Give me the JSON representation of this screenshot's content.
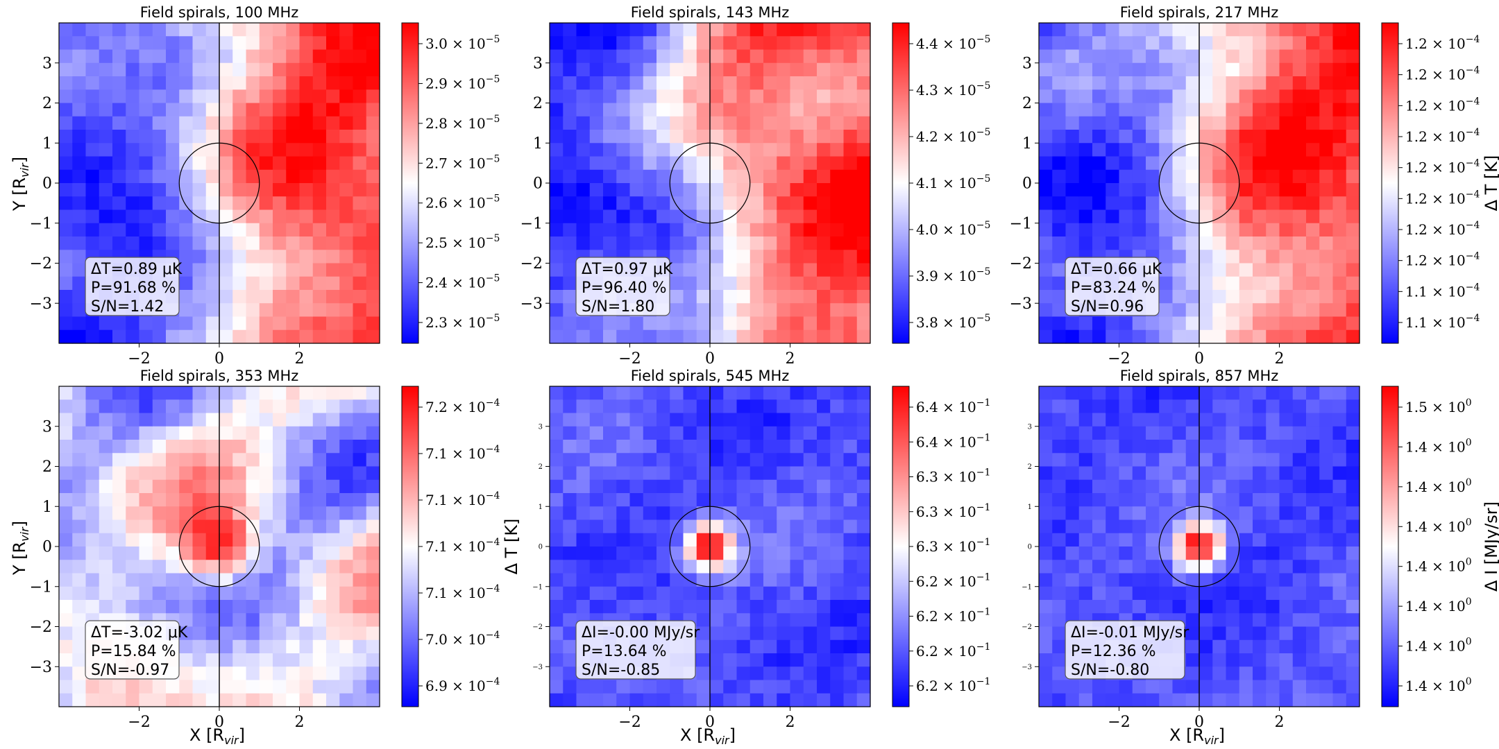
{
  "figure": {
    "x_axis_label": "X [R",
    "x_axis_label_sub": "vir",
    "x_axis_label_end": "]",
    "y_axis_label": "Y [R",
    "y_axis_label_sub": "vir",
    "y_axis_label_end": "]",
    "colors": {
      "map_low": "#0000ff",
      "map_mid": "#ffffff",
      "map_high": "#ff0000",
      "frame": "#000000"
    }
  },
  "chart_data": [
    {
      "type": "heatmap",
      "row": 0,
      "col": 0,
      "title": "Field spirals, 100 MHz",
      "xlim": [
        -4,
        4
      ],
      "ylim": [
        -4,
        4
      ],
      "xticks": [
        "−2",
        "0",
        "2"
      ],
      "xtick_values": [
        -2,
        0,
        2
      ],
      "yticks": [
        "3",
        "2",
        "1",
        "0",
        "−1",
        "−2",
        "−3"
      ],
      "ytick_values": [
        3,
        2,
        1,
        0,
        -1,
        -2,
        -3
      ],
      "circle_radius": 1,
      "pattern": "left-blue-right-red",
      "stats": [
        "ΔT=0.89 μK",
        "P=91.68 %",
        "S/N=1.42"
      ],
      "colorbar": {
        "label": "",
        "ticks": [
          "3.0 × 10",
          "2.9 × 10",
          "2.8 × 10",
          "2.7 × 10",
          "2.6 × 10",
          "2.5 × 10",
          "2.4 × 10",
          "2.3 × 10"
        ],
        "exponent": "−5"
      }
    },
    {
      "type": "heatmap",
      "row": 0,
      "col": 1,
      "title": "Field spirals, 143 MHz",
      "xlim": [
        -4,
        4
      ],
      "ylim": [
        -4,
        4
      ],
      "xticks": [
        "−2",
        "0",
        "2"
      ],
      "xtick_values": [
        -2,
        0,
        2
      ],
      "yticks": [
        "3",
        "2",
        "1",
        "0",
        "−1",
        "−2",
        "−3"
      ],
      "ytick_values": [
        3,
        2,
        1,
        0,
        -1,
        -2,
        -3
      ],
      "circle_radius": 1,
      "pattern": "left-blue-right-red",
      "stats": [
        "ΔT=0.97 μK",
        "P=96.40 %",
        "S/N=1.80"
      ],
      "colorbar": {
        "label": "",
        "ticks": [
          "4.4 × 10",
          "4.3 × 10",
          "4.2 × 10",
          "4.1 × 10",
          "4.0 × 10",
          "3.9 × 10",
          "3.8 × 10"
        ],
        "exponent": "−5"
      }
    },
    {
      "type": "heatmap",
      "row": 0,
      "col": 2,
      "title": "Field spirals, 217 MHz",
      "xlim": [
        -4,
        4
      ],
      "ylim": [
        -4,
        4
      ],
      "xticks": [
        "−2",
        "0",
        "2"
      ],
      "xtick_values": [
        -2,
        0,
        2
      ],
      "yticks": [
        "3",
        "2",
        "1",
        "0",
        "−1",
        "−2",
        "−3"
      ],
      "ytick_values": [
        3,
        2,
        1,
        0,
        -1,
        -2,
        -3
      ],
      "circle_radius": 1,
      "pattern": "left-blue-right-red",
      "stats": [
        "ΔT=0.66 μK",
        "P=83.24 %",
        "S/N=0.96"
      ],
      "colorbar": {
        "label": "Δ T [K]",
        "ticks": [
          "1.2 × 10",
          "1.2 × 10",
          "1.2 × 10",
          "1.2 × 10",
          "1.2 × 10",
          "1.2 × 10",
          "1.2 × 10",
          "1.2 × 10",
          "1.1 × 10",
          "1.1 × 10"
        ],
        "exponent": "−4"
      }
    },
    {
      "type": "heatmap",
      "row": 1,
      "col": 0,
      "title": "Field spirals, 353 MHz",
      "xlim": [
        -4,
        4
      ],
      "ylim": [
        -4,
        4
      ],
      "xticks": [
        "−2",
        "0",
        "2"
      ],
      "xtick_values": [
        -2,
        0,
        2
      ],
      "yticks": [
        "3",
        "2",
        "1",
        "0",
        "−1",
        "−2",
        "−3"
      ],
      "ytick_values": [
        3,
        2,
        1,
        0,
        -1,
        -2,
        -3
      ],
      "circle_radius": 1,
      "pattern": "noisy-central-red",
      "stats": [
        "ΔT=-3.02 μK",
        "P=15.84 %",
        "S/N=-0.97"
      ],
      "colorbar": {
        "label": "Δ T [K]",
        "ticks": [
          "7.2 × 10",
          "7.1 × 10",
          "7.1 × 10",
          "7.1 × 10",
          "7.1 × 10",
          "7.0 × 10",
          "6.9 × 10"
        ],
        "exponent": "−4"
      }
    },
    {
      "type": "heatmap",
      "row": 1,
      "col": 1,
      "title": "Field spirals, 545 MHz",
      "xlim": [
        -4,
        4
      ],
      "ylim": [
        -4,
        4
      ],
      "xticks": [
        "−2",
        "0",
        "2"
      ],
      "xtick_values": [
        -2,
        0,
        2
      ],
      "yticks": [
        "3",
        "2",
        "1",
        "0",
        "−1",
        "−2",
        "−3"
      ],
      "ytick_values": [
        3,
        2,
        1,
        0,
        -1,
        -2,
        -3
      ],
      "circle_radius": 1,
      "pattern": "blue-central-source",
      "stats": [
        "ΔI=-0.00 MJy/sr",
        "P=13.64 %",
        "S/N=-0.85"
      ],
      "colorbar": {
        "label": "",
        "ticks": [
          "6.4 × 10",
          "6.4 × 10",
          "6.3 × 10",
          "6.3 × 10",
          "6.3 × 10",
          "6.2 × 10",
          "6.2 × 10",
          "6.2 × 10",
          "6.2 × 10"
        ],
        "exponent": "−1"
      }
    },
    {
      "type": "heatmap",
      "row": 1,
      "col": 2,
      "title": "Field spirals, 857 MHz",
      "xlim": [
        -4,
        4
      ],
      "ylim": [
        -4,
        4
      ],
      "xticks": [
        "−2",
        "0",
        "2"
      ],
      "xtick_values": [
        -2,
        0,
        2
      ],
      "yticks": [
        "3",
        "2",
        "1",
        "0",
        "−1",
        "−2",
        "−3"
      ],
      "ytick_values": [
        3,
        2,
        1,
        0,
        -1,
        -2,
        -3
      ],
      "circle_radius": 1,
      "pattern": "blue-central-source",
      "stats": [
        "ΔI=-0.01 MJy/sr",
        "P=12.36 %",
        "S/N=-0.80"
      ],
      "colorbar": {
        "label": "Δ I [MJy/sr]",
        "ticks": [
          "1.5 × 10",
          "1.4 × 10",
          "1.4 × 10",
          "1.4 × 10",
          "1.4 × 10",
          "1.4 × 10",
          "1.4 × 10",
          "1.4 × 10"
        ],
        "exponent": "0"
      }
    }
  ]
}
